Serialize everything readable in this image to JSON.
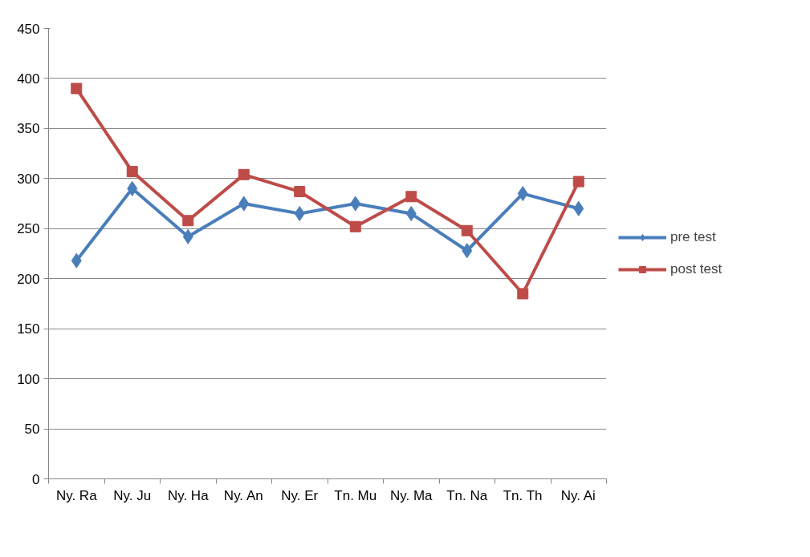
{
  "chart_data": {
    "type": "line",
    "categories": [
      "Ny. Ra",
      "Ny. Ju",
      "Ny. Ha",
      "Ny. An",
      "Ny. Er",
      "Tn. Mu",
      "Ny. Ma",
      "Tn. Na",
      "Tn. Th",
      "Ny. Ai"
    ],
    "series": [
      {
        "name": "pre test",
        "color": "#4a7ebb",
        "marker": "diamond",
        "values": [
          218,
          290,
          242,
          275,
          265,
          275,
          265,
          228,
          285,
          270
        ]
      },
      {
        "name": "post test",
        "color": "#be4b48",
        "marker": "square",
        "values": [
          390,
          307,
          258,
          304,
          287,
          252,
          282,
          248,
          185,
          297
        ]
      }
    ],
    "ylim": [
      0,
      450
    ],
    "yticks": [
      0,
      50,
      100,
      150,
      200,
      250,
      300,
      350,
      400,
      450
    ],
    "grid": "y",
    "legend": "right",
    "line_style": "solid"
  }
}
